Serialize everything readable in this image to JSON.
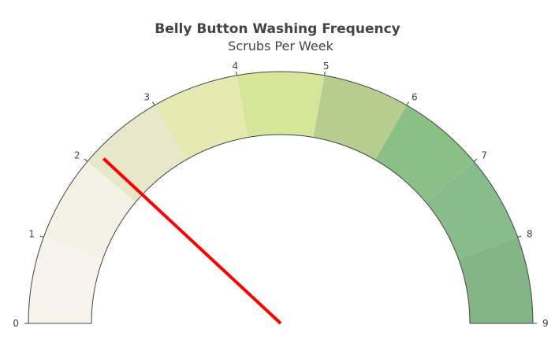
{
  "chart_data": {
    "type": "gauge",
    "title": "Belly Button Washing Frequency",
    "subtitle": "Scrubs Per Week",
    "range": [
      0,
      9
    ],
    "ticks": [
      {
        "value": 0,
        "label": "0"
      },
      {
        "value": 1,
        "label": "1"
      },
      {
        "value": 2,
        "label": "2"
      },
      {
        "value": 3,
        "label": "3"
      },
      {
        "value": 4,
        "label": "4"
      },
      {
        "value": 5,
        "label": "5"
      },
      {
        "value": 6,
        "label": "6"
      },
      {
        "value": 7,
        "label": "7"
      },
      {
        "value": 8,
        "label": "8"
      },
      {
        "value": 9,
        "label": "9"
      }
    ],
    "steps": [
      {
        "from": 0,
        "to": 1,
        "color": "#f8f3ec"
      },
      {
        "from": 1,
        "to": 2,
        "color": "#f4f1e5"
      },
      {
        "from": 2,
        "to": 3,
        "color": "#e9e7c9"
      },
      {
        "from": 3,
        "to": 4,
        "color": "#e5e8b0"
      },
      {
        "from": 4,
        "to": 5,
        "color": "#d5e599"
      },
      {
        "from": 5,
        "to": 6,
        "color": "#b7cd8f"
      },
      {
        "from": 6,
        "to": 7,
        "color": "#8ac086"
      },
      {
        "from": 7,
        "to": 8,
        "color": "#89bc8d"
      },
      {
        "from": 8,
        "to": 9,
        "color": "#84b589"
      }
    ],
    "needle": {
      "value": 2.15,
      "color": "#ff0000"
    }
  }
}
